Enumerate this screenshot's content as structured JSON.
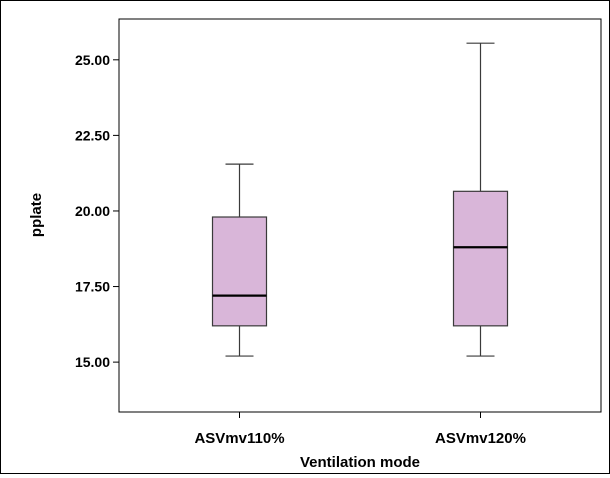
{
  "chart_data": {
    "type": "boxplot",
    "title": "",
    "xlabel": "Ventilation mode",
    "ylabel": "pplate",
    "categories": [
      "ASVmv110%",
      "ASVmv120%"
    ],
    "boxes": [
      {
        "category": "ASVmv110%",
        "min": 15.2,
        "q1": 16.2,
        "median": 17.2,
        "q3": 19.8,
        "max": 21.55
      },
      {
        "category": "ASVmv120%",
        "min": 15.2,
        "q1": 16.2,
        "median": 18.8,
        "q3": 20.65,
        "max": 25.55
      }
    ],
    "ylim": [
      13.35,
      26.35
    ],
    "yticks": [
      15.0,
      17.5,
      20.0,
      22.5,
      25.0
    ],
    "ytick_labels": [
      "15.00",
      "17.50",
      "20.00",
      "22.50",
      "25.00"
    ],
    "grid": false,
    "box_color": "#d9b6d9",
    "box_edge_color": "#3a3a3a"
  }
}
